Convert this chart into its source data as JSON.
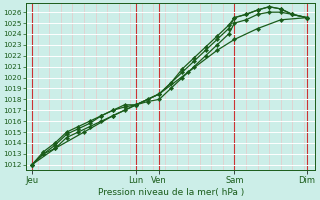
{
  "title": "Pression niveau de la mer( hPa )",
  "ylabel_values": [
    1012,
    1013,
    1014,
    1015,
    1016,
    1017,
    1018,
    1019,
    1020,
    1021,
    1022,
    1023,
    1024,
    1025,
    1026
  ],
  "ylim": [
    1011.5,
    1026.8
  ],
  "xlim": [
    0,
    100
  ],
  "background_color": "#cceee8",
  "grid_color_h": "#ffffff",
  "grid_color_v_major": "#cc3333",
  "grid_color_v_minor": "#e8c8c8",
  "line_color": "#1a5c1a",
  "tick_label_color": "#1a5c1a",
  "xtick_positions": [
    2,
    38,
    46,
    72,
    97
  ],
  "xtick_labels": [
    "Jeu",
    "Lun",
    "Ven",
    "Sam",
    "Dim"
  ],
  "vline_major": [
    2,
    38,
    46,
    72,
    97
  ],
  "vline_minor_step": 4,
  "lines": [
    {
      "x": [
        2,
        6,
        10,
        14,
        18,
        22,
        26,
        30,
        34,
        38,
        42,
        46,
        50,
        54,
        58,
        62,
        66,
        70,
        72,
        76,
        80,
        84,
        88,
        92,
        97
      ],
      "y": [
        1012,
        1013,
        1013.5,
        1014.5,
        1015,
        1015.5,
        1016,
        1016.5,
        1017,
        1017.5,
        1017.8,
        1018,
        1019,
        1020,
        1021,
        1022,
        1023,
        1024,
        1025,
        1025.3,
        1025.8,
        1026,
        1026,
        1025.8,
        1025.5
      ]
    },
    {
      "x": [
        2,
        6,
        10,
        14,
        18,
        22,
        26,
        30,
        34,
        38,
        42,
        46,
        50,
        54,
        58,
        62,
        66,
        70,
        72,
        76,
        80,
        84,
        88,
        92,
        97
      ],
      "y": [
        1012,
        1013,
        1013.8,
        1014.8,
        1015.3,
        1015.8,
        1016.5,
        1017,
        1017.3,
        1017.5,
        1018,
        1018.5,
        1019.5,
        1020.5,
        1021.5,
        1022.5,
        1023.5,
        1024.5,
        1025.5,
        1025.8,
        1026.2,
        1026.5,
        1026.3,
        1025.8,
        1025.5
      ]
    },
    {
      "x": [
        2,
        6,
        10,
        14,
        18,
        22,
        26,
        30,
        34,
        38,
        46,
        50,
        54,
        58,
        62,
        66,
        70,
        72,
        76,
        80,
        84,
        88,
        92,
        97
      ],
      "y": [
        1012,
        1013.2,
        1014,
        1015,
        1015.5,
        1016,
        1016.5,
        1017,
        1017.5,
        1017.5,
        1018.5,
        1019.5,
        1020.8,
        1021.8,
        1022.8,
        1023.8,
        1024.8,
        1025.5,
        1025.8,
        1026.2,
        1026.5,
        1026.3,
        1025.8,
        1025.5
      ]
    },
    {
      "x": [
        2,
        10,
        20,
        30,
        38,
        46,
        56,
        66,
        72,
        80,
        88,
        97
      ],
      "y": [
        1012,
        1013.5,
        1015,
        1016.5,
        1017.5,
        1018.5,
        1020.5,
        1022.5,
        1023.5,
        1024.5,
        1025.3,
        1025.5
      ]
    }
  ]
}
